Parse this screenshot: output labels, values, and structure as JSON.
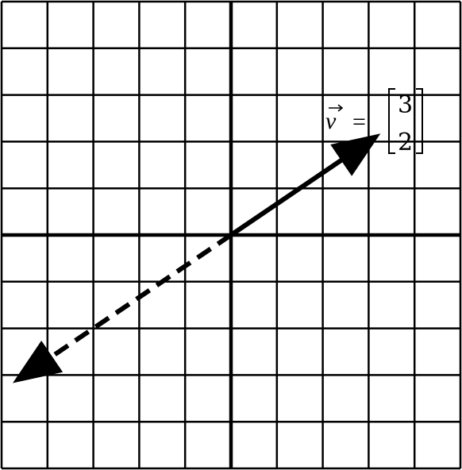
{
  "diagram": {
    "grid": {
      "x_min": -5,
      "x_max": 5,
      "y_min": -5,
      "y_max": 5,
      "step": 1
    },
    "vector": {
      "name": "v",
      "components": [
        3,
        2
      ],
      "label_lhs": "v",
      "label_eq": "=",
      "label_top": "3",
      "label_bottom": "2",
      "line_style": "solid"
    },
    "negative_vector": {
      "components": [
        -4.5,
        -3
      ],
      "line_style": "dashed"
    },
    "colors": {
      "ink": "#000000",
      "background": "#ffffff"
    }
  }
}
